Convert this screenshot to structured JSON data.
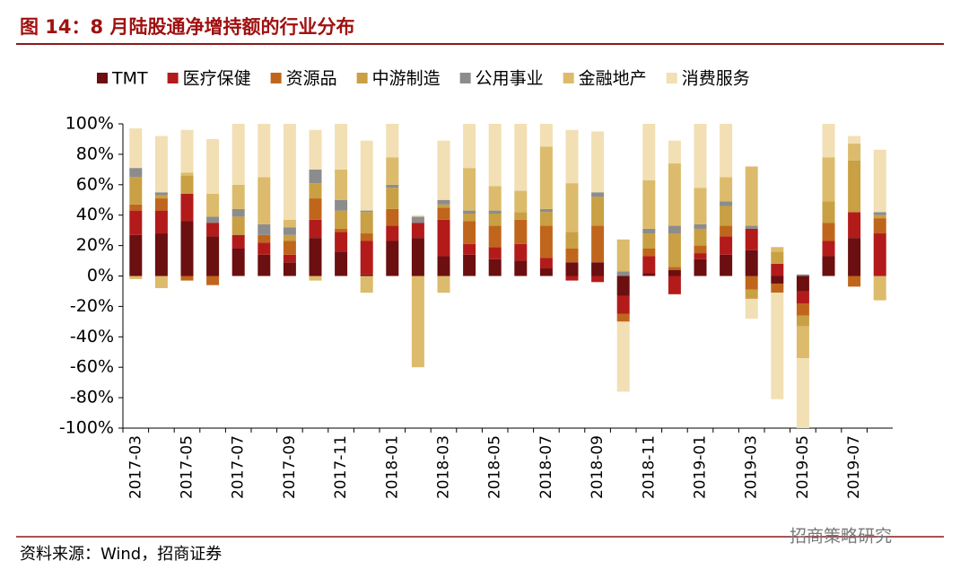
{
  "chart_data": {
    "type": "stacked_bar",
    "title": "图 14：8 月陆股通净增持额的行业分布",
    "source": "资料来源：Wind，招商证券",
    "watermark": "招商策略研究",
    "categories": [
      "2017-03",
      null,
      "2017-05",
      null,
      "2017-07",
      null,
      "2017-09",
      null,
      "2017-11",
      null,
      "2018-01",
      null,
      "2018-03",
      null,
      "2018-05",
      null,
      "2018-07",
      null,
      "2018-09",
      null,
      "2018-11",
      null,
      "2019-01",
      null,
      "2019-03",
      null,
      "2019-05",
      null,
      "2019-07",
      null
    ],
    "series": [
      {
        "name": "TMT",
        "color": "#6b0f10",
        "values": [
          27,
          28,
          36,
          26,
          18,
          14,
          9,
          25,
          16,
          1,
          23,
          25,
          13,
          14,
          11,
          10,
          5,
          9,
          9,
          -13,
          2,
          4,
          11,
          14,
          17,
          -5,
          -10,
          13,
          25,
          0
        ]
      },
      {
        "name": "医疗保健",
        "color": "#b31b1b",
        "values": [
          16,
          15,
          18,
          9,
          9,
          8,
          5,
          12,
          13,
          22,
          10,
          10,
          24,
          7,
          8,
          11,
          7,
          -3,
          -4,
          -12,
          11,
          -12,
          4,
          12,
          14,
          8,
          -8,
          10,
          17,
          28
        ]
      },
      {
        "name": "资源品",
        "color": "#c0661c",
        "values": [
          4,
          8,
          -3,
          -6,
          0,
          5,
          9,
          14,
          2,
          5,
          11,
          0,
          8,
          15,
          14,
          16,
          21,
          9,
          24,
          -5,
          5,
          2,
          5,
          7,
          -9,
          -6,
          -8,
          12,
          -7,
          10
        ]
      },
      {
        "name": "中游制造",
        "color": "#c9a043",
        "values": [
          18,
          2,
          12,
          0,
          12,
          0,
          4,
          10,
          12,
          14,
          14,
          0,
          2,
          5,
          8,
          5,
          9,
          11,
          19,
          0,
          10,
          22,
          11,
          13,
          -6,
          8,
          -7,
          14,
          34,
          2
        ]
      },
      {
        "name": "公用事业",
        "color": "#8c8c8c",
        "values": [
          6,
          2,
          0,
          4,
          5,
          7,
          5,
          9,
          7,
          1,
          2,
          4,
          3,
          2,
          2,
          0,
          2,
          0,
          3,
          3,
          3,
          5,
          3,
          3,
          2,
          0,
          1,
          0,
          0,
          2
        ]
      },
      {
        "name": "金融地产",
        "color": "#dcbb6c",
        "values": [
          -2,
          -8,
          2,
          15,
          16,
          31,
          5,
          -3,
          20,
          -11,
          18,
          -60,
          -11,
          28,
          16,
          14,
          41,
          32,
          0,
          21,
          32,
          41,
          24,
          16,
          39,
          3,
          -21,
          29,
          11,
          -16
        ]
      },
      {
        "name": "消费服务",
        "color": "#f2dfb4",
        "values": [
          26,
          37,
          28,
          36,
          40,
          35,
          63,
          26,
          30,
          46,
          22,
          1,
          39,
          29,
          41,
          44,
          15,
          35,
          40,
          -46,
          37,
          15,
          42,
          35,
          -13,
          -70,
          -46,
          22,
          5,
          41
        ]
      }
    ],
    "ylim": [
      -100,
      100
    ],
    "yticks": [
      {
        "value": -100,
        "label": "-100%"
      },
      {
        "value": -80,
        "label": "-80%"
      },
      {
        "value": -60,
        "label": "-60%"
      },
      {
        "value": -40,
        "label": "-40%"
      },
      {
        "value": -20,
        "label": "-20%"
      },
      {
        "value": 0,
        "label": "0%"
      },
      {
        "value": 20,
        "label": "20%"
      },
      {
        "value": 40,
        "label": "40%"
      },
      {
        "value": 60,
        "label": "60%"
      },
      {
        "value": 80,
        "label": "80%"
      },
      {
        "value": 100,
        "label": "100%"
      }
    ],
    "grid": false,
    "legend": "top"
  }
}
